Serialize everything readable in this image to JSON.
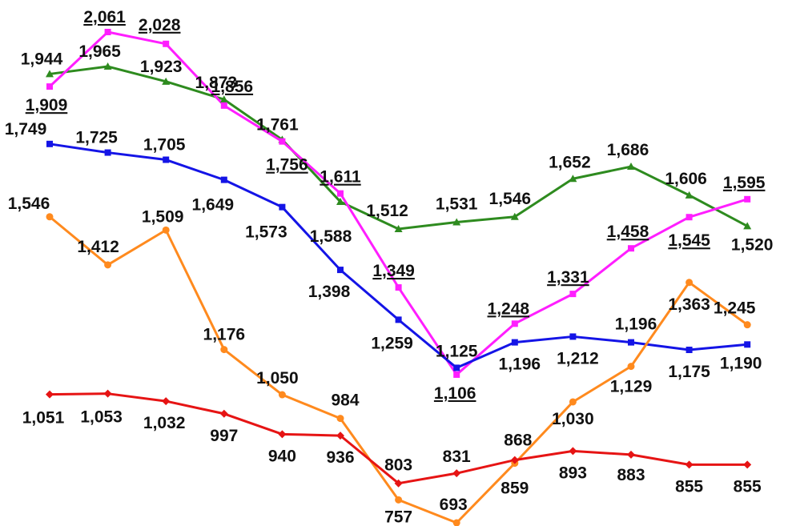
{
  "chart_data": {
    "type": "line",
    "title": "",
    "xlabel": "",
    "ylabel": "",
    "grid": false,
    "legend": "none",
    "x": [
      1,
      2,
      3,
      4,
      5,
      6,
      7,
      8,
      9,
      10,
      11,
      12,
      13
    ],
    "series": [
      {
        "color": "#2e8b1f",
        "marker": "triangle",
        "values": [
          1944,
          1965,
          1923,
          1873,
          1761,
          1588,
          1512,
          1531,
          1546,
          1652,
          1686,
          1606,
          1520
        ],
        "labels": [
          "1,944",
          "1,965",
          "1,923",
          "1,873",
          "1,761",
          "1,588",
          "1,512",
          "1,531",
          "1,546",
          "1,652",
          "1,686",
          "1,606",
          "1,520"
        ]
      },
      {
        "color": "#ff1eff",
        "marker": "square",
        "values": [
          1909,
          2061,
          2028,
          1856,
          1756,
          1611,
          1349,
          1106,
          1248,
          1331,
          1458,
          1545,
          1595
        ],
        "labels": [
          "1,909",
          "2,061",
          "2,028",
          "1,856",
          "1,756",
          "1,611",
          "1,349",
          "1,106",
          "1,248",
          "1,331",
          "1,458",
          "1,545",
          "1,595"
        ]
      },
      {
        "color": "#1414e6",
        "marker": "square",
        "values": [
          1749,
          1725,
          1705,
          1649,
          1573,
          1398,
          1259,
          1125,
          1196,
          1212,
          1196,
          1175,
          1190
        ],
        "labels": [
          "1,749",
          "1,725",
          "1,705",
          "1,649",
          "1,573",
          "1,398",
          "1,259",
          "1,125",
          "1,196",
          "1,212",
          "1,196",
          "1,175",
          "1,190"
        ]
      },
      {
        "color": "#ff8a1e",
        "marker": "circle",
        "values": [
          1546,
          1412,
          1509,
          1176,
          1050,
          984,
          757,
          693,
          859,
          1030,
          1129,
          1363,
          1245
        ],
        "labels": [
          "1,546",
          "1,412",
          "1,509",
          "1,176",
          "1,050",
          "984",
          "757",
          "693",
          "859",
          "1,030",
          "1,129",
          "1,363",
          "1,245"
        ]
      },
      {
        "color": "#e61414",
        "marker": "diamond",
        "values": [
          1051,
          1053,
          1032,
          997,
          940,
          936,
          803,
          831,
          868,
          893,
          883,
          855,
          855
        ],
        "labels": [
          "1,051",
          "1,053",
          "1,032",
          "997",
          "940",
          "936",
          "803",
          "831",
          "868",
          "893",
          "883",
          "855",
          "855"
        ]
      }
    ]
  }
}
